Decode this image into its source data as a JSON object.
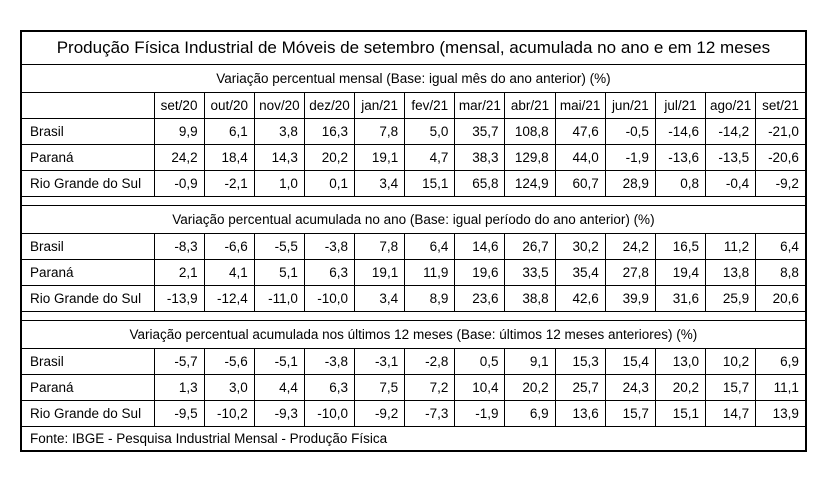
{
  "title": "Produção Física Industrial de Móveis de setembro (mensal, acumulada no ano e em 12 meses",
  "months": [
    "set/20",
    "out/20",
    "nov/20",
    "dez/20",
    "jan/21",
    "fev/21",
    "mar/21",
    "abr/21",
    "mai/21",
    "jun/21",
    "jul/21",
    "ago/21",
    "set/21"
  ],
  "sections": [
    {
      "header": "Variação percentual mensal (Base: igual mês do ano anterior) (%)",
      "rows": [
        {
          "label": "Brasil",
          "values": [
            "9,9",
            "6,1",
            "3,8",
            "16,3",
            "7,8",
            "5,0",
            "35,7",
            "108,8",
            "47,6",
            "-0,5",
            "-14,6",
            "-14,2",
            "-21,0"
          ]
        },
        {
          "label": "Paraná",
          "values": [
            "24,2",
            "18,4",
            "14,3",
            "20,2",
            "19,1",
            "4,7",
            "38,3",
            "129,8",
            "44,0",
            "-1,9",
            "-13,6",
            "-13,5",
            "-20,6"
          ]
        },
        {
          "label": "Rio Grande do Sul",
          "values": [
            "-0,9",
            "-2,1",
            "1,0",
            "0,1",
            "3,4",
            "15,1",
            "65,8",
            "124,9",
            "60,7",
            "28,9",
            "0,8",
            "-0,4",
            "-9,2"
          ]
        }
      ]
    },
    {
      "header": "Variação percentual acumulada no ano (Base: igual período do ano anterior) (%)",
      "rows": [
        {
          "label": "Brasil",
          "values": [
            "-8,3",
            "-6,6",
            "-5,5",
            "-3,8",
            "7,8",
            "6,4",
            "14,6",
            "26,7",
            "30,2",
            "24,2",
            "16,5",
            "11,2",
            "6,4"
          ]
        },
        {
          "label": "Paraná",
          "values": [
            "2,1",
            "4,1",
            "5,1",
            "6,3",
            "19,1",
            "11,9",
            "19,6",
            "33,5",
            "35,4",
            "27,8",
            "19,4",
            "13,8",
            "8,8"
          ]
        },
        {
          "label": "Rio Grande do Sul",
          "values": [
            "-13,9",
            "-12,4",
            "-11,0",
            "-10,0",
            "3,4",
            "8,9",
            "23,6",
            "38,8",
            "42,6",
            "39,9",
            "31,6",
            "25,9",
            "20,6"
          ]
        }
      ]
    },
    {
      "header": "Variação percentual acumulada nos últimos 12 meses (Base: últimos 12 meses anteriores) (%)",
      "rows": [
        {
          "label": "Brasil",
          "values": [
            "-5,7",
            "-5,6",
            "-5,1",
            "-3,8",
            "-3,1",
            "-2,8",
            "0,5",
            "9,1",
            "15,3",
            "15,4",
            "13,0",
            "10,2",
            "6,9"
          ]
        },
        {
          "label": "Paraná",
          "values": [
            "1,3",
            "3,0",
            "4,4",
            "6,3",
            "7,5",
            "7,2",
            "10,4",
            "20,2",
            "25,7",
            "24,3",
            "20,2",
            "15,7",
            "11,1"
          ]
        },
        {
          "label": "Rio Grande do Sul",
          "values": [
            "-9,5",
            "-10,2",
            "-9,3",
            "-10,0",
            "-9,2",
            "-7,3",
            "-1,9",
            "6,9",
            "13,6",
            "15,7",
            "15,1",
            "14,7",
            "13,9"
          ]
        }
      ]
    }
  ],
  "footer": "Fonte: IBGE - Pesquisa Industrial Mensal - Produção Física",
  "colors": {
    "border": "#000000",
    "text": "#000000",
    "background": "#ffffff"
  },
  "chart_data": [
    {
      "type": "table",
      "title": "Variação percentual mensal (Base: igual mês do ano anterior) (%)",
      "categories": [
        "set/20",
        "out/20",
        "nov/20",
        "dez/20",
        "jan/21",
        "fev/21",
        "mar/21",
        "abr/21",
        "mai/21",
        "jun/21",
        "jul/21",
        "ago/21",
        "set/21"
      ],
      "series": [
        {
          "name": "Brasil",
          "values": [
            9.9,
            6.1,
            3.8,
            16.3,
            7.8,
            5.0,
            35.7,
            108.8,
            47.6,
            -0.5,
            -14.6,
            -14.2,
            -21.0
          ]
        },
        {
          "name": "Paraná",
          "values": [
            24.2,
            18.4,
            14.3,
            20.2,
            19.1,
            4.7,
            38.3,
            129.8,
            44.0,
            -1.9,
            -13.6,
            -13.5,
            -20.6
          ]
        },
        {
          "name": "Rio Grande do Sul",
          "values": [
            -0.9,
            -2.1,
            1.0,
            0.1,
            3.4,
            15.1,
            65.8,
            124.9,
            60.7,
            28.9,
            0.8,
            -0.4,
            -9.2
          ]
        }
      ]
    },
    {
      "type": "table",
      "title": "Variação percentual acumulada no ano (Base: igual período do ano anterior) (%)",
      "categories": [
        "set/20",
        "out/20",
        "nov/20",
        "dez/20",
        "jan/21",
        "fev/21",
        "mar/21",
        "abr/21",
        "mai/21",
        "jun/21",
        "jul/21",
        "ago/21",
        "set/21"
      ],
      "series": [
        {
          "name": "Brasil",
          "values": [
            -8.3,
            -6.6,
            -5.5,
            -3.8,
            7.8,
            6.4,
            14.6,
            26.7,
            30.2,
            24.2,
            16.5,
            11.2,
            6.4
          ]
        },
        {
          "name": "Paraná",
          "values": [
            2.1,
            4.1,
            5.1,
            6.3,
            19.1,
            11.9,
            19.6,
            33.5,
            35.4,
            27.8,
            19.4,
            13.8,
            8.8
          ]
        },
        {
          "name": "Rio Grande do Sul",
          "values": [
            -13.9,
            -12.4,
            -11.0,
            -10.0,
            3.4,
            8.9,
            23.6,
            38.8,
            42.6,
            39.9,
            31.6,
            25.9,
            20.6
          ]
        }
      ]
    },
    {
      "type": "table",
      "title": "Variação percentual acumulada nos últimos 12 meses (Base: últimos 12 meses anteriores) (%)",
      "categories": [
        "set/20",
        "out/20",
        "nov/20",
        "dez/20",
        "jan/21",
        "fev/21",
        "mar/21",
        "abr/21",
        "mai/21",
        "jun/21",
        "jul/21",
        "ago/21",
        "set/21"
      ],
      "series": [
        {
          "name": "Brasil",
          "values": [
            -5.7,
            -5.6,
            -5.1,
            -3.8,
            -3.1,
            -2.8,
            0.5,
            9.1,
            15.3,
            15.4,
            13.0,
            10.2,
            6.9
          ]
        },
        {
          "name": "Paraná",
          "values": [
            1.3,
            3.0,
            4.4,
            6.3,
            7.5,
            7.2,
            10.4,
            20.2,
            25.7,
            24.3,
            20.2,
            15.7,
            11.1
          ]
        },
        {
          "name": "Rio Grande do Sul",
          "values": [
            -9.5,
            -10.2,
            -9.3,
            -10.0,
            -9.2,
            -7.3,
            -1.9,
            6.9,
            13.6,
            15.7,
            15.1,
            14.7,
            13.9
          ]
        }
      ]
    }
  ]
}
